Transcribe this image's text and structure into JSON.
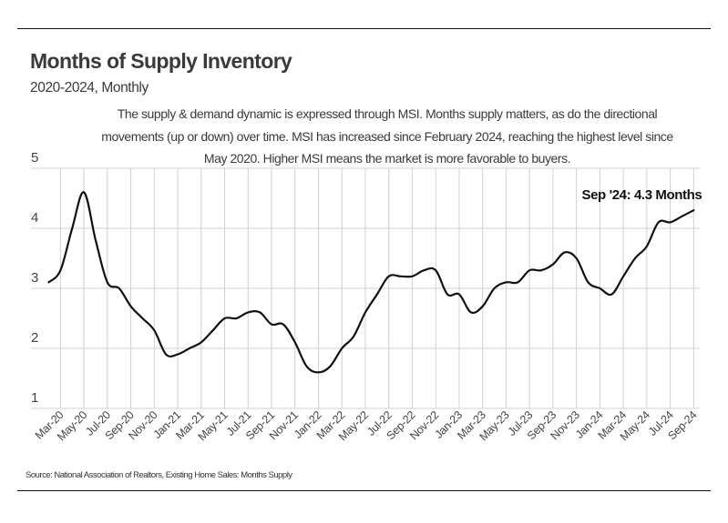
{
  "header": {
    "title": "Months of Supply Inventory",
    "subtitle": "2020-2024, Monthly",
    "description": "The supply & demand dynamic is expressed through MSI. Months supply matters, as do the directional movements (up or down) over time. MSI has increased since February 2024, reaching the highest level since May 2020. Higher MSI means the market is more favorable to buyers."
  },
  "footer": {
    "source": "Source:  National Association of Realtors, Existing Home Sales: Months Supply"
  },
  "colors": {
    "line": "#111111",
    "grid": "#d0d0d0",
    "text": "#3a3a3a"
  },
  "chart_data": {
    "type": "line",
    "title": "Months of Supply Inventory",
    "subtitle": "2020-2024, Monthly",
    "xlabel": "",
    "ylabel": "",
    "ylim": [
      1,
      5
    ],
    "yticks": [
      1,
      2,
      3,
      4,
      5
    ],
    "grid": true,
    "legend": "none",
    "x": [
      "Feb-20",
      "Mar-20",
      "Apr-20",
      "May-20",
      "Jun-20",
      "Jul-20",
      "Aug-20",
      "Sep-20",
      "Oct-20",
      "Nov-20",
      "Dec-20",
      "Jan-21",
      "Feb-21",
      "Mar-21",
      "Apr-21",
      "May-21",
      "Jun-21",
      "Jul-21",
      "Aug-21",
      "Sep-21",
      "Oct-21",
      "Nov-21",
      "Dec-21",
      "Jan-22",
      "Feb-22",
      "Mar-22",
      "Apr-22",
      "May-22",
      "Jun-22",
      "Jul-22",
      "Aug-22",
      "Sep-22",
      "Oct-22",
      "Nov-22",
      "Dec-22",
      "Jan-23",
      "Feb-23",
      "Mar-23",
      "Apr-23",
      "May-23",
      "Jun-23",
      "Jul-23",
      "Aug-23",
      "Sep-23",
      "Oct-23",
      "Nov-23",
      "Dec-23",
      "Jan-24",
      "Feb-24",
      "Mar-24",
      "Apr-24",
      "May-24",
      "Jun-24",
      "Jul-24",
      "Aug-24",
      "Sep-24"
    ],
    "xtick_labels": [
      "Mar-20",
      "May-20",
      "Jul-20",
      "Sep-20",
      "Nov-20",
      "Jan-21",
      "Mar-21",
      "May-21",
      "Jul-21",
      "Sep-21",
      "Nov-21",
      "Jan-22",
      "Mar-22",
      "May-22",
      "Jul-22",
      "Sep-22",
      "Nov-22",
      "Jan-23",
      "Mar-23",
      "May-23",
      "Jul-23",
      "Sep-23",
      "Nov-23",
      "Jan-24",
      "Mar-24",
      "May-24",
      "Jul-24",
      "Sep-24"
    ],
    "series": [
      {
        "name": "Months Supply",
        "values": [
          3.1,
          3.3,
          4.0,
          4.6,
          3.8,
          3.1,
          3.0,
          2.7,
          2.5,
          2.3,
          1.9,
          1.9,
          2.0,
          2.1,
          2.3,
          2.5,
          2.5,
          2.6,
          2.6,
          2.4,
          2.4,
          2.1,
          1.7,
          1.6,
          1.7,
          2.0,
          2.2,
          2.6,
          2.9,
          3.2,
          3.2,
          3.2,
          3.3,
          3.3,
          2.9,
          2.9,
          2.6,
          2.7,
          3.0,
          3.1,
          3.1,
          3.3,
          3.3,
          3.4,
          3.6,
          3.5,
          3.1,
          3.0,
          2.9,
          3.2,
          3.5,
          3.7,
          4.1,
          4.1,
          4.2,
          4.3
        ]
      }
    ],
    "annotations": [
      {
        "text": "Sep '24: 4.3 Months",
        "x": "Sep-24",
        "y": 4.3
      }
    ]
  }
}
